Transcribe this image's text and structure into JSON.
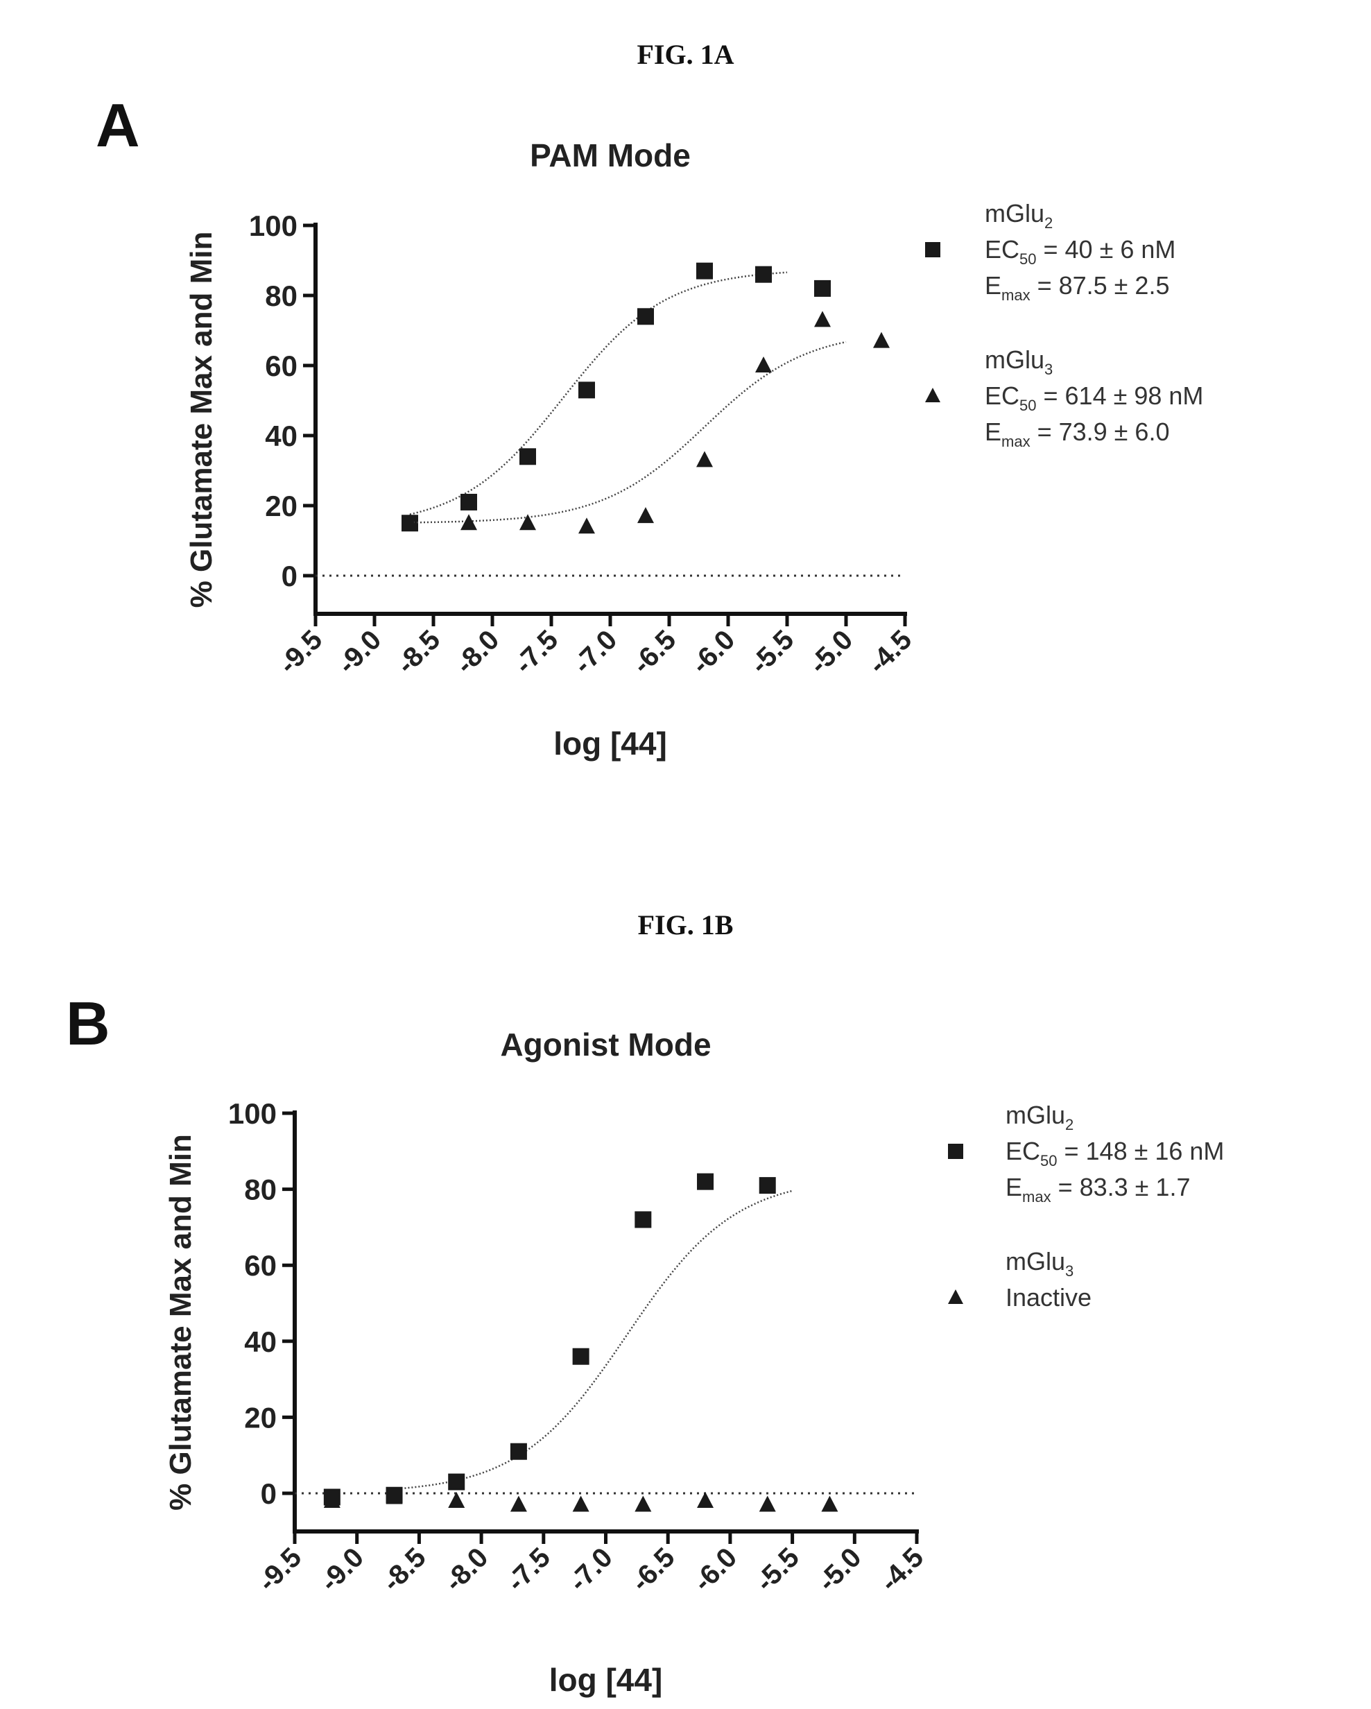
{
  "figures": [
    {
      "caption": "FIG. 1A",
      "panel_letter": "A"
    },
    {
      "caption": "FIG. 1B",
      "panel_letter": "B"
    }
  ],
  "chart_data": [
    {
      "type": "scatter",
      "title": "PAM Mode",
      "xlabel": "log [44]",
      "ylabel": "% Glutamate Max and Min",
      "xlim": [
        -9.5,
        -4.5
      ],
      "ylim": [
        -10,
        100
      ],
      "xticks": [
        "-9.5",
        "-9.0",
        "-8.5",
        "-8.0",
        "-7.5",
        "-7.0",
        "-6.5",
        "-6.0",
        "-5.5",
        "-5.0",
        "-4.5"
      ],
      "yticks": [
        "0",
        "20",
        "40",
        "60",
        "80",
        "100"
      ],
      "reference_line": 0,
      "legend_position": "right",
      "series": [
        {
          "name": "mGlu2",
          "marker": "square",
          "legend_lines": [
            {
              "main": "mGlu",
              "sub": "2",
              "rest": ""
            },
            {
              "main": "EC",
              "sub": "50",
              "rest": " = 40 ± 6 nM"
            },
            {
              "main": "E",
              "sub": "max",
              "rest": " = 87.5 ± 2.5"
            }
          ],
          "x": [
            -8.7,
            -8.2,
            -7.7,
            -7.2,
            -6.7,
            -6.2,
            -5.7,
            -5.2
          ],
          "y": [
            15,
            21,
            34,
            53,
            74,
            87,
            86,
            82
          ],
          "fit": {
            "bottom": 14,
            "top": 87.5,
            "logEC50": -7.4,
            "x_range": [
              -8.7,
              -5.5
            ]
          }
        },
        {
          "name": "mGlu3",
          "marker": "triangle",
          "legend_lines": [
            {
              "main": "mGlu",
              "sub": "3",
              "rest": ""
            },
            {
              "main": "EC",
              "sub": "50",
              "rest": " = 614 ± 98 nM"
            },
            {
              "main": "E",
              "sub": "max",
              "rest": " = 73.9 ± 6.0"
            }
          ],
          "x": [
            -8.7,
            -8.2,
            -7.7,
            -7.2,
            -6.7,
            -6.2,
            -5.7,
            -5.2,
            -4.7
          ],
          "y": [
            15,
            15,
            15,
            14,
            17,
            33,
            60,
            73,
            67
          ],
          "fit": {
            "bottom": 15,
            "top": 70,
            "logEC50": -6.2,
            "x_range": [
              -8.7,
              -5.0
            ]
          }
        }
      ]
    },
    {
      "type": "scatter",
      "title": "Agonist Mode",
      "xlabel": "log [44]",
      "ylabel": "% Glutamate Max and Min",
      "xlim": [
        -9.5,
        -4.5
      ],
      "ylim": [
        -10,
        100
      ],
      "xticks": [
        "-9.5",
        "-9.0",
        "-8.5",
        "-8.0",
        "-7.5",
        "-7.0",
        "-6.5",
        "-6.0",
        "-5.5",
        "-5.0",
        "-4.5"
      ],
      "yticks": [
        "0",
        "20",
        "40",
        "60",
        "80",
        "100"
      ],
      "reference_line": 0,
      "legend_position": "right",
      "series": [
        {
          "name": "mGlu2",
          "marker": "square",
          "legend_lines": [
            {
              "main": "mGlu",
              "sub": "2",
              "rest": ""
            },
            {
              "main": "EC",
              "sub": "50",
              "rest": " = 148 ± 16 nM"
            },
            {
              "main": "E",
              "sub": "max",
              "rest": " = 83.3 ± 1.7"
            }
          ],
          "x": [
            -9.2,
            -8.7,
            -8.2,
            -7.7,
            -7.2,
            -6.7,
            -6.2,
            -5.7
          ],
          "y": [
            -1,
            -0.5,
            3,
            11,
            36,
            72,
            82,
            81
          ],
          "fit": {
            "bottom": 0,
            "top": 83.3,
            "logEC50": -6.83,
            "x_range": [
              -8.7,
              -5.5
            ]
          }
        },
        {
          "name": "mGlu3",
          "marker": "triangle",
          "legend_lines": [
            {
              "main": "mGlu",
              "sub": "3",
              "rest": ""
            },
            {
              "main": "Inactive",
              "sub": "",
              "rest": ""
            }
          ],
          "x": [
            -9.2,
            -8.7,
            -8.2,
            -7.7,
            -7.2,
            -6.7,
            -6.2,
            -5.7,
            -5.2
          ],
          "y": [
            -2,
            -1,
            -2,
            -3,
            -3,
            -3,
            -2,
            -3,
            -3
          ],
          "fit": null
        }
      ]
    }
  ]
}
